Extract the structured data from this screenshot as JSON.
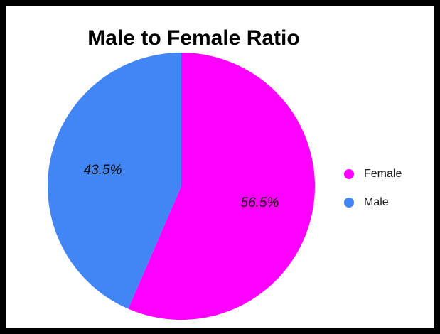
{
  "chart_data": {
    "type": "pie",
    "title": "Male to Female Ratio",
    "slices": [
      {
        "label": "Female",
        "value": 56.5,
        "display": "56.5%",
        "color": "#ff00ff"
      },
      {
        "label": "Male",
        "value": 43.5,
        "display": "43.5%",
        "color": "#4285f4"
      }
    ],
    "start_angle_deg": 0,
    "direction": "clockwise",
    "legend_position": "right"
  }
}
